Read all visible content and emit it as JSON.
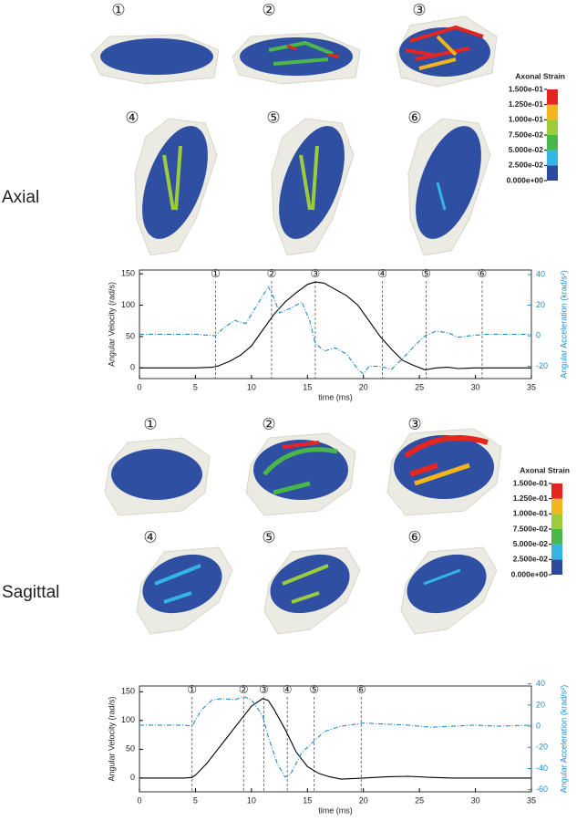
{
  "sections": [
    {
      "label": "Axial",
      "frames": [
        "①",
        "②",
        "③",
        "④",
        "⑤",
        "⑥"
      ],
      "colorbar": {
        "title": "Axonal Strain",
        "ticks": [
          {
            "value": 0,
            "label": "0.000e+00"
          },
          {
            "value": 0.025,
            "label": "2.500e-02"
          },
          {
            "value": 0.05,
            "label": "5.000e-02"
          },
          {
            "value": 0.075,
            "label": "7.500e-02"
          },
          {
            "value": 0.1,
            "label": "1.000e-01"
          },
          {
            "value": 0.125,
            "label": "1.250e-01"
          },
          {
            "value": 0.15,
            "label": "1.500e-01"
          }
        ],
        "colors": [
          "#2b4a9f",
          "#33b5e6",
          "#49b648",
          "#9ccb3b",
          "#f2b51b",
          "#e5251f"
        ]
      }
    },
    {
      "label": "Sagittal",
      "frames": [
        "①",
        "②",
        "③",
        "④",
        "⑤",
        "⑥"
      ],
      "colorbar": {
        "title": "Axonal Strain",
        "ticks": [
          {
            "value": 0,
            "label": "0.000e+00"
          },
          {
            "value": 0.025,
            "label": "2.500e-02"
          },
          {
            "value": 0.05,
            "label": "5.000e-02"
          },
          {
            "value": 0.075,
            "label": "7.500e-02"
          },
          {
            "value": 0.1,
            "label": "1.000e-01"
          },
          {
            "value": 0.125,
            "label": "1.250e-01"
          },
          {
            "value": 0.15,
            "label": "1.500e-01"
          }
        ],
        "colors": [
          "#2b4a9f",
          "#33b5e6",
          "#49b648",
          "#9ccb3b",
          "#f2b51b",
          "#e5251f"
        ]
      }
    }
  ],
  "chart_data": [
    {
      "type": "line",
      "x_label": "time (ms)",
      "y_label": "Angular Velocity (rad/s)",
      "y2_label": "Angular Acceleration (krad/s²)",
      "xlim": [
        0,
        35
      ],
      "xticks": [
        0,
        5,
        10,
        15,
        20,
        25,
        30,
        35
      ],
      "ylim": [
        -17,
        156
      ],
      "yticks": [
        0,
        50,
        100,
        150
      ],
      "y2lim": [
        -28,
        43
      ],
      "y2ticks": [
        -20,
        0,
        20,
        40
      ],
      "y2_color": "#1f8ccb",
      "markers": [
        {
          "x": 6.8,
          "label": "①"
        },
        {
          "x": 11.8,
          "label": "②"
        },
        {
          "x": 15.7,
          "label": "③"
        },
        {
          "x": 21.7,
          "label": "④"
        },
        {
          "x": 25.6,
          "label": "⑤"
        },
        {
          "x": 30.6,
          "label": "⑥"
        }
      ],
      "series": [
        {
          "color": "#000000",
          "style": "solid",
          "x": [
            0,
            5,
            6.5,
            7,
            8,
            9,
            10,
            11,
            12,
            13,
            14,
            15,
            15.7,
            16.5,
            17.5,
            18.5,
            19.5,
            20.5,
            21.5,
            22.5,
            23.5,
            24.5,
            25.5,
            26.5,
            27.5,
            28.5,
            30,
            35
          ],
          "values": [
            0,
            0,
            1,
            3,
            10,
            20,
            35,
            60,
            85,
            105,
            120,
            133,
            137,
            135,
            125,
            115,
            100,
            75,
            50,
            30,
            12,
            4,
            -3,
            0,
            1,
            -1,
            0,
            0
          ]
        },
        {
          "color": "#1f8ccb",
          "style": "dashdot",
          "axis": "y2",
          "x": [
            0,
            5,
            6.8,
            7.5,
            8.5,
            9.5,
            10.5,
            11.5,
            12,
            12.5,
            13.5,
            14.5,
            15.2,
            15.7,
            16.5,
            17.5,
            18.5,
            19.5,
            20,
            20.5,
            21.5,
            22.5,
            23.5,
            24.5,
            25.5,
            26.5,
            27.5,
            28.5,
            29.5,
            31,
            35
          ],
          "values": [
            1,
            1,
            0,
            5,
            10,
            8,
            20,
            32,
            25,
            15,
            18,
            22,
            10,
            -5,
            -10,
            -8,
            -12,
            -22,
            -25,
            -20,
            -20,
            -22,
            -15,
            -7,
            0,
            3,
            2,
            -1,
            0,
            1,
            1
          ]
        }
      ]
    },
    {
      "type": "line",
      "x_label": "time (ms)",
      "y_label": "Angular Velocity (rad/s)",
      "y2_label": "Angular Acceleration (krad/s²)",
      "xlim": [
        0,
        35
      ],
      "xticks": [
        0,
        5,
        10,
        15,
        20,
        25,
        30,
        35
      ],
      "ylim": [
        -24,
        160
      ],
      "yticks": [
        0,
        50,
        100,
        150
      ],
      "y2lim": [
        -62,
        38
      ],
      "y2ticks": [
        -60,
        -40,
        -20,
        0,
        20,
        40
      ],
      "y2_color": "#1f8ccb",
      "markers": [
        {
          "x": 4.7,
          "label": "①"
        },
        {
          "x": 9.3,
          "label": "②"
        },
        {
          "x": 11.1,
          "label": "③"
        },
        {
          "x": 13.2,
          "label": "④"
        },
        {
          "x": 15.6,
          "label": "⑤"
        },
        {
          "x": 19.8,
          "label": "⑥"
        }
      ],
      "series": [
        {
          "color": "#000000",
          "style": "solid",
          "x": [
            0,
            4,
            4.7,
            5,
            6,
            7,
            8,
            9,
            10,
            11,
            11.5,
            12,
            13,
            14,
            15,
            16,
            17,
            18,
            20,
            22,
            24,
            26,
            28,
            35
          ],
          "values": [
            0,
            0,
            1,
            5,
            25,
            50,
            75,
            100,
            125,
            138,
            135,
            120,
            85,
            45,
            20,
            8,
            2,
            -2,
            0,
            2,
            3,
            1,
            0,
            0
          ]
        },
        {
          "color": "#1f8ccb",
          "style": "dashdot",
          "axis": "y2",
          "x": [
            0,
            4,
            4.7,
            5.5,
            6.5,
            7.5,
            8.5,
            9.3,
            10,
            11,
            11.5,
            12.3,
            13,
            13.5,
            14.5,
            15.5,
            16.5,
            18,
            20,
            22,
            24,
            26,
            28,
            30,
            32,
            35
          ],
          "values": [
            1,
            1,
            0,
            15,
            25,
            26,
            25,
            28,
            25,
            10,
            -10,
            -35,
            -48,
            -45,
            -25,
            -15,
            -5,
            0,
            3,
            2,
            1,
            -1,
            0,
            1,
            0,
            1
          ]
        }
      ]
    }
  ]
}
